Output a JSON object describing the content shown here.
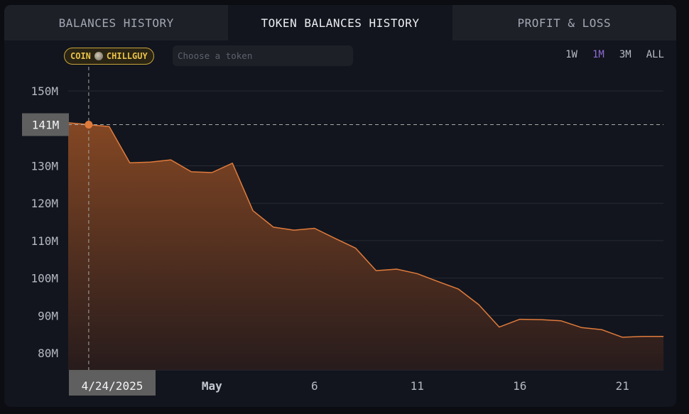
{
  "tabs": [
    {
      "label": "BALANCES HISTORY",
      "active": false
    },
    {
      "label": "TOKEN BALANCES HISTORY",
      "active": true
    },
    {
      "label": "PROFIT & LOSS",
      "active": false
    }
  ],
  "token_badge": {
    "label": "COIN",
    "symbol": "CHILLGUY"
  },
  "token_search": {
    "placeholder": "Choose a token",
    "value": ""
  },
  "ranges": [
    {
      "label": "1W",
      "active": false
    },
    {
      "label": "1M",
      "active": true
    },
    {
      "label": "3M",
      "active": false
    },
    {
      "label": "ALL",
      "active": false
    }
  ],
  "colors": {
    "accent": "#8e6bd6",
    "series": "#e07b3c",
    "badge": "#e8c14a"
  },
  "crosshair": {
    "value_label": "141M",
    "date_label": "4/24/2025"
  },
  "chart_data": {
    "type": "area",
    "title": "",
    "xlabel": "",
    "ylabel": "",
    "ylim": [
      75,
      160
    ],
    "y_ticks": [
      {
        "value": 80,
        "label": "80M"
      },
      {
        "value": 90,
        "label": "90M"
      },
      {
        "value": 100,
        "label": "100M"
      },
      {
        "value": 110,
        "label": "110M"
      },
      {
        "value": 120,
        "label": "120M"
      },
      {
        "value": 130,
        "label": "130M"
      },
      {
        "value": 150,
        "label": "150M"
      }
    ],
    "x_ticks": [
      {
        "day": 7,
        "label": "May",
        "bold": true
      },
      {
        "day": 12,
        "label": "6",
        "bold": false
      },
      {
        "day": 17,
        "label": "11",
        "bold": false
      },
      {
        "day": 22,
        "label": "16",
        "bold": false
      },
      {
        "day": 27,
        "label": "21",
        "bold": false
      }
    ],
    "grid": true,
    "series": [
      {
        "values": [
          [
            "4/23/2025",
            141.5
          ],
          [
            "4/24/2025",
            141
          ],
          [
            "4/25/2025",
            140.5
          ],
          [
            "4/26/2025",
            130.8
          ],
          [
            "4/27/2025",
            131
          ],
          [
            "4/28/2025",
            131.6
          ],
          [
            "4/29/2025",
            128.4
          ],
          [
            "4/30/2025",
            128.2
          ],
          [
            "5/1/2025",
            130.7
          ],
          [
            "5/2/2025",
            118
          ],
          [
            "5/3/2025",
            113.6
          ],
          [
            "5/4/2025",
            112.8
          ],
          [
            "5/5/2025",
            113.3
          ],
          [
            "5/6/2025",
            110.6
          ],
          [
            "5/7/2025",
            108
          ],
          [
            "5/8/2025",
            102
          ],
          [
            "5/9/2025",
            102.4
          ],
          [
            "5/10/2025",
            101.2
          ],
          [
            "5/11/2025",
            99.1
          ],
          [
            "5/12/2025",
            97.1
          ],
          [
            "5/13/2025",
            92.9
          ],
          [
            "5/14/2025",
            86.9
          ],
          [
            "5/15/2025",
            89
          ],
          [
            "5/16/2025",
            88.9
          ],
          [
            "5/17/2025",
            88.6
          ],
          [
            "5/18/2025",
            86.8
          ],
          [
            "5/19/2025",
            86.2
          ],
          [
            "5/20/2025",
            84.2
          ],
          [
            "5/21/2025",
            84.4
          ],
          [
            "5/22/2025",
            84.4
          ]
        ]
      }
    ]
  }
}
